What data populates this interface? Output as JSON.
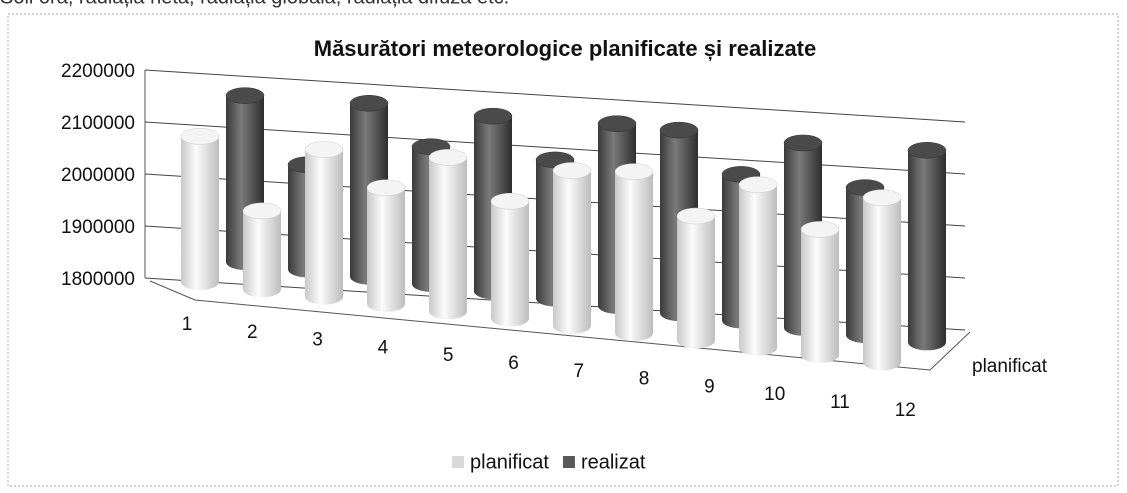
{
  "page_header": "Soli oră, radiația netă, radiația globală, radiația difuză etc.",
  "chart_data": {
    "type": "bar",
    "title": "Măsurători meteorologice planificate și realizate",
    "categories": [
      "1",
      "2",
      "3",
      "4",
      "5",
      "6",
      "7",
      "8",
      "9",
      "10",
      "11",
      "12"
    ],
    "series": [
      {
        "name": "planificat",
        "color": "#d9d9d9",
        "values": [
          2080000,
          1950000,
          2080000,
          2020000,
          2090000,
          2020000,
          2090000,
          2100000,
          2030000,
          2100000,
          2030000,
          2100000
        ]
      },
      {
        "name": "realizat",
        "color": "#595959",
        "values": [
          2120000,
          2000000,
          2130000,
          2060000,
          2130000,
          2060000,
          2140000,
          2140000,
          2070000,
          2140000,
          2070000,
          2150000
        ]
      }
    ],
    "ylim": [
      1800000,
      2200000
    ],
    "yticks": [
      1800000,
      1900000,
      2000000,
      2100000,
      2200000
    ],
    "grid": true,
    "legend": "bottom"
  }
}
